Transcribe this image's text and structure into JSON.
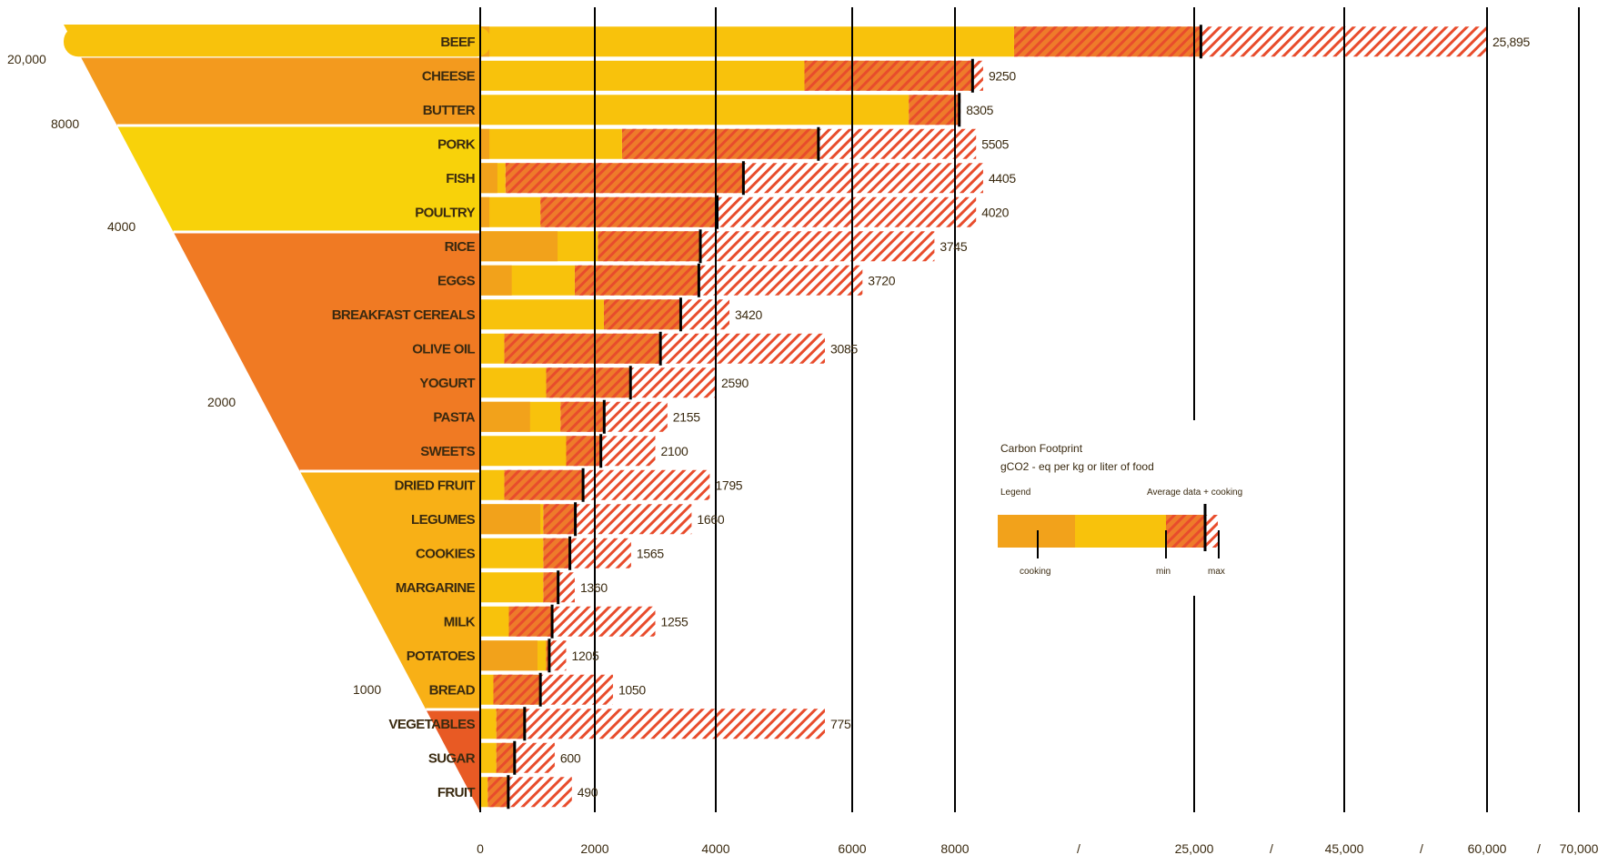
{
  "chart_data": {
    "type": "bar",
    "title": "Carbon Footprint",
    "subtitle": "gCO2 - eq per kg or liter of food",
    "legend": {
      "heading": "Legend",
      "average_label": "Average data + cooking",
      "cooking_label": "cooking",
      "min_label": "min",
      "max_label": "max",
      "colors": {
        "cooking": "#f2a21b",
        "base": "#f8c20c",
        "range": "#ee7b2a",
        "hatch": "#e84c2c"
      }
    },
    "x_ticks": [
      "0",
      "2000",
      "4000",
      "6000",
      "8000",
      "/",
      "25,000",
      "/",
      "45,000",
      "/",
      "60,000",
      "/",
      "70,000"
    ],
    "funnel_scale": [
      "20,000",
      "8000",
      "4000",
      "2000",
      "1000"
    ],
    "categories": [
      "BEEF",
      "CHEESE",
      "BUTTER",
      "PORK",
      "FISH",
      "POULTRY",
      "RICE",
      "EGGS",
      "BREAKFAST CEREALS",
      "OLIVE OIL",
      "YOGURT",
      "PASTA",
      "SWEETS",
      "DRIED FRUIT",
      "LEGUMES",
      "COOKIES",
      "MARGARINE",
      "MILK",
      "POTATOES",
      "BREAD",
      "VEGETABLES",
      "SUGAR",
      "FRUIT"
    ],
    "values": [
      25895,
      9250,
      8305,
      5505,
      4405,
      4020,
      3745,
      3720,
      3420,
      3085,
      2590,
      2155,
      2100,
      1795,
      1660,
      1565,
      1360,
      1255,
      1205,
      1050,
      775,
      600,
      490
    ],
    "value_labels": [
      "25,895",
      "9250",
      "8305",
      "5505",
      "4405",
      "4020",
      "3745",
      "3720",
      "3420",
      "3085",
      "2590",
      "2155",
      "2100",
      "1795",
      "1660",
      "1565",
      "1360",
      "1255",
      "1205",
      "1050",
      "775",
      "600",
      "490"
    ],
    "series": [
      {
        "name": "cooking",
        "values": [
          160,
          0,
          0,
          160,
          300,
          160,
          1350,
          550,
          0,
          0,
          0,
          870,
          0,
          0,
          1050,
          0,
          0,
          0,
          1000,
          0,
          0,
          0,
          0
        ]
      },
      {
        "name": "min",
        "values": [
          12200,
          5300,
          7100,
          2450,
          440,
          1050,
          2050,
          1650,
          2150,
          420,
          1150,
          1400,
          1500,
          420,
          1100,
          1100,
          1100,
          500,
          1150,
          230,
          280,
          280,
          130
        ]
      },
      {
        "name": "max",
        "values": [
          60000,
          10000,
          8400,
          9500,
          10000,
          9500,
          7600,
          6200,
          4200,
          5600,
          4000,
          3200,
          3000,
          3900,
          3600,
          2600,
          1650,
          3000,
          1500,
          2300,
          5600,
          1300,
          1600
        ]
      }
    ]
  }
}
